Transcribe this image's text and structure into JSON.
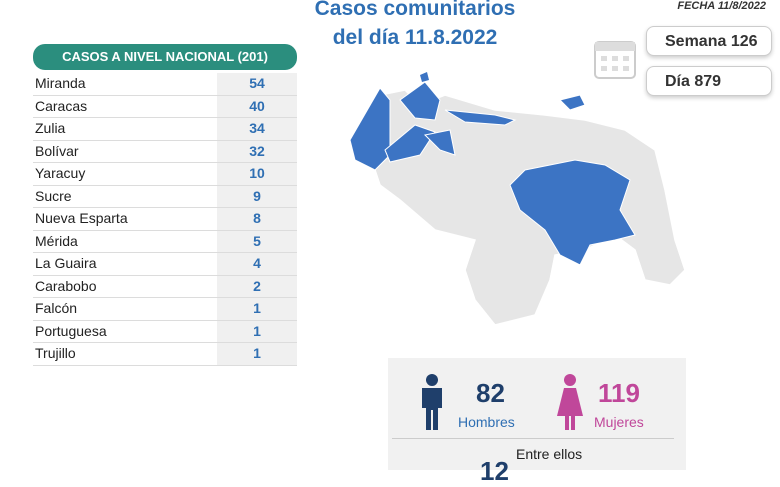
{
  "header": {
    "title_line1": "Casos comunitarios",
    "title_line2": "del día 11.8.2022",
    "date": "FECHA 11/8/2022",
    "week": "Semana 126",
    "day": "Día 879"
  },
  "table": {
    "title": "CASOS A NIVEL NACIONAL (201)",
    "rows": [
      [
        "Miranda",
        54
      ],
      [
        "Caracas",
        40
      ],
      [
        "Zulia",
        34
      ],
      [
        "Bolívar",
        32
      ],
      [
        "Yaracuy",
        10
      ],
      [
        "Sucre",
        9
      ],
      [
        "Nueva Esparta",
        8
      ],
      [
        "Mérida",
        5
      ],
      [
        "La Guaira",
        4
      ],
      [
        "Carabobo",
        2
      ],
      [
        "Falcón",
        1
      ],
      [
        "Portuguesa",
        1
      ],
      [
        "Trujillo",
        1
      ]
    ]
  },
  "gender": {
    "men": 82,
    "men_label": "Hombres",
    "women": 119,
    "women_label": "Mujeres"
  },
  "minors": {
    "label": "Entre ellos",
    "count": 12
  }
}
